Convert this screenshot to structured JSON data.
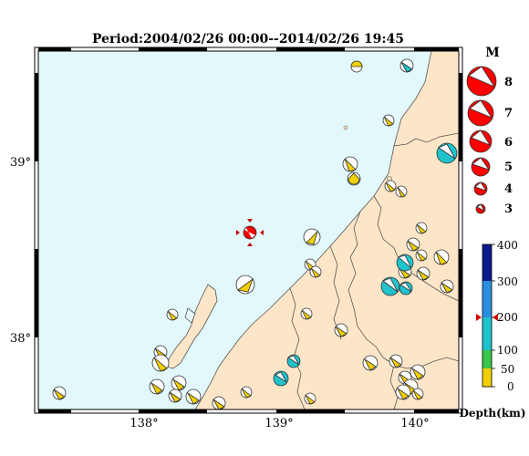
{
  "title": "Period:2004/02/26 00:00--2014/02/26 19:45",
  "axes": {
    "lon_labels": [
      "138°",
      "139°",
      "140°"
    ],
    "lat_labels": [
      "39°",
      "38°"
    ]
  },
  "magnitude_legend": {
    "header": "M",
    "items": [
      "8",
      "7",
      "6",
      "5",
      "4",
      "3"
    ]
  },
  "depth_scale": {
    "label": "Depth(km)",
    "ticks": [
      "400",
      "300",
      "200",
      "100",
      "50",
      "0"
    ],
    "marker_value": 200,
    "colors": {
      "0-50": "#f2d000",
      "50-100": "#39c64a",
      "100-200": "#1fc3cc",
      "200-300": "#2a8fe0",
      "300-400": "#0a1a8a"
    }
  },
  "colors": {
    "sea": "#e2f8fa",
    "land": "#fde6c8",
    "main_event": "#ff0000",
    "shallow": "#f2d000",
    "intermediate": "#1fc3cc"
  }
}
